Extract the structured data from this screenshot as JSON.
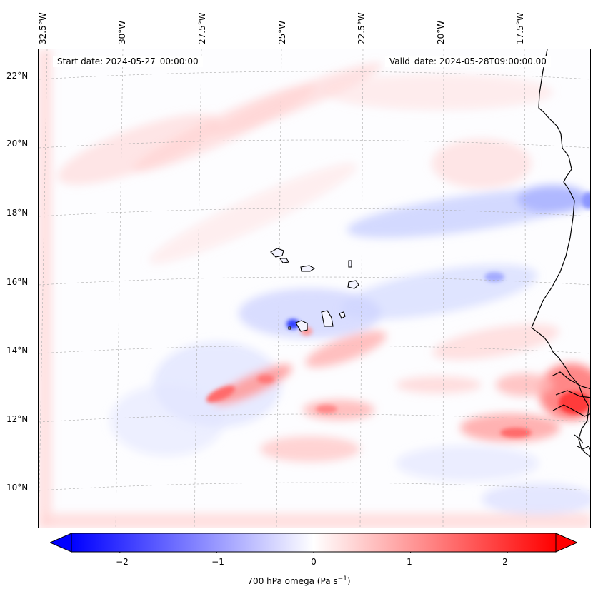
{
  "header": {
    "start_date": "Start date: 2024-05-27_00:00:00",
    "valid_date": "Valid_date: 2024-05-28T09:00:00.00"
  },
  "axes": {
    "lon_labels": [
      "32.5°W",
      "30°W",
      "27.5°W",
      "25°W",
      "22.5°W",
      "20°W",
      "17.5°W"
    ],
    "lat_labels": [
      "22°N",
      "20°N",
      "18°N",
      "16°N",
      "14°N",
      "12°N",
      "10°N"
    ]
  },
  "colorbar": {
    "ticks": [
      "−2",
      "−1",
      "0",
      "1",
      "2"
    ],
    "tick_values": [
      -2,
      -1,
      0,
      1,
      2
    ],
    "range": [
      -2.5,
      2.5
    ],
    "label_main": "700 hPa omega (Pa s",
    "label_exp": "−1",
    "label_close": ")",
    "colors": {
      "negative": "#0000ff",
      "zero": "#ffffff",
      "positive": "#ff0000"
    }
  },
  "map": {
    "coastline_color": "#000000",
    "grid": "dashed"
  }
}
